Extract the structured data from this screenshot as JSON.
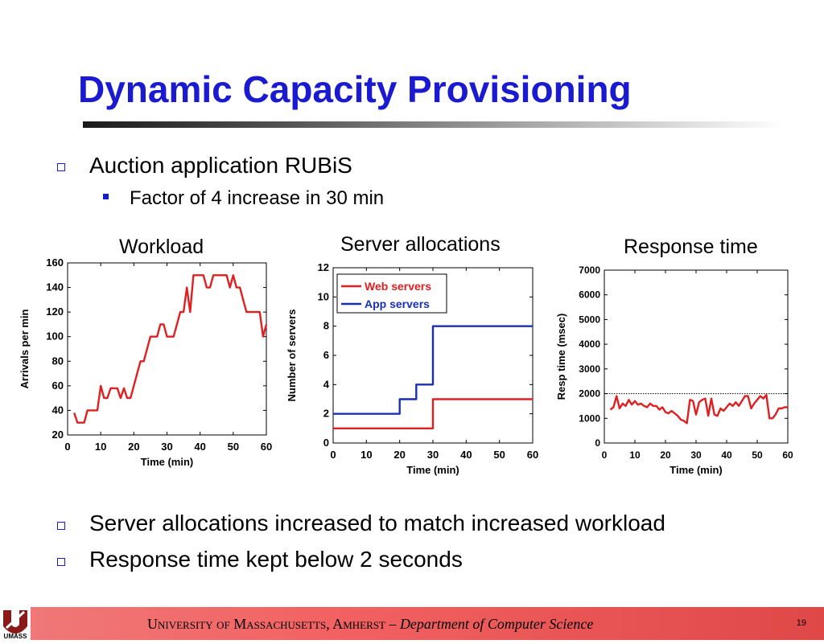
{
  "slide": {
    "title": "Dynamic Capacity Provisioning",
    "bullets_top": [
      {
        "text": "Auction application RUBiS",
        "sub": [
          {
            "text": "Factor of 4 increase in 30 min"
          }
        ]
      }
    ],
    "bullets_bottom": [
      {
        "text": "Server allocations increased to match increased workload"
      },
      {
        "text": "Response time kept below 2 seconds"
      }
    ],
    "footer": {
      "university_sc": "University of Massachusetts, Amherst",
      "separator": "–",
      "department": "Department of Computer Science",
      "page_number": "19",
      "logo_text": "UMASS"
    },
    "colors": {
      "title": "#1a1ad0",
      "bullet": "#1a1ad0",
      "red_series": "#e02020",
      "blue_series": "#1a2fb8",
      "footer": "#f26262"
    }
  },
  "chart_data": [
    {
      "type": "line",
      "title": "Workload",
      "xlabel": "Time (min)",
      "ylabel": "Arrivals per min",
      "xlim": [
        0,
        60
      ],
      "ylim": [
        20,
        160
      ],
      "xticks": [
        0,
        10,
        20,
        30,
        40,
        50,
        60
      ],
      "yticks": [
        20,
        40,
        60,
        80,
        100,
        120,
        140,
        160
      ],
      "grid": false,
      "series": [
        {
          "color": "#e02020",
          "x": [
            2,
            3,
            4,
            5,
            6,
            7,
            8,
            9,
            10,
            11,
            12,
            13,
            14,
            15,
            16,
            17,
            18,
            19,
            20,
            21,
            22,
            23,
            24,
            25,
            26,
            27,
            28,
            29,
            30,
            31,
            32,
            33,
            34,
            35,
            36,
            37,
            38,
            39,
            40,
            41,
            42,
            43,
            44,
            45,
            46,
            47,
            48,
            49,
            50,
            51,
            52,
            53,
            54,
            55,
            56,
            57,
            58,
            59,
            60
          ],
          "y": [
            38,
            30,
            30,
            30,
            40,
            40,
            40,
            40,
            60,
            50,
            50,
            58,
            58,
            58,
            50,
            58,
            50,
            50,
            60,
            70,
            80,
            80,
            90,
            100,
            100,
            100,
            110,
            110,
            100,
            100,
            100,
            110,
            120,
            120,
            140,
            120,
            150,
            150,
            150,
            150,
            140,
            140,
            150,
            150,
            150,
            150,
            150,
            140,
            150,
            140,
            140,
            130,
            120,
            120,
            120,
            120,
            120,
            100,
            110
          ]
        }
      ]
    },
    {
      "type": "line",
      "title": "Server allocations",
      "xlabel": "Time (min)",
      "ylabel": "Number of servers",
      "xlim": [
        0,
        60
      ],
      "ylim": [
        0,
        12
      ],
      "xticks": [
        0,
        10,
        20,
        30,
        40,
        50,
        60
      ],
      "yticks": [
        0,
        2,
        4,
        6,
        8,
        10,
        12
      ],
      "grid": false,
      "legend": "top-left",
      "series": [
        {
          "name": "Web servers",
          "color": "#e02020",
          "x": [
            0,
            30,
            30,
            60
          ],
          "y": [
            1,
            1,
            3,
            3
          ]
        },
        {
          "name": "App servers",
          "color": "#1a2fb8",
          "x": [
            0,
            20,
            20,
            25,
            25,
            30,
            30,
            60
          ],
          "y": [
            2,
            2,
            3,
            3,
            4,
            4,
            8,
            8
          ]
        }
      ]
    },
    {
      "type": "line",
      "title": "Response time",
      "xlabel": "Time (min)",
      "ylabel": "Resp time (msec)",
      "xlim": [
        0,
        60
      ],
      "ylim": [
        0,
        7000
      ],
      "xticks": [
        0,
        10,
        20,
        30,
        40,
        50,
        60
      ],
      "yticks": [
        0,
        1000,
        2000,
        3000,
        4000,
        5000,
        6000,
        7000
      ],
      "grid": false,
      "threshold": 2000,
      "series": [
        {
          "color": "#e02020",
          "x": [
            2,
            3,
            4,
            5,
            6,
            7,
            8,
            9,
            10,
            11,
            12,
            13,
            14,
            15,
            16,
            17,
            18,
            19,
            20,
            21,
            22,
            23,
            24,
            25,
            26,
            27,
            28,
            29,
            30,
            31,
            32,
            33,
            34,
            35,
            36,
            37,
            38,
            39,
            40,
            41,
            42,
            43,
            44,
            45,
            46,
            47,
            48,
            49,
            50,
            51,
            52,
            53,
            54,
            55,
            56,
            57,
            58,
            59,
            60
          ],
          "y": [
            1350,
            1450,
            1900,
            1400,
            1600,
            1500,
            1750,
            1550,
            1700,
            1550,
            1600,
            1500,
            1450,
            1600,
            1500,
            1500,
            1350,
            1450,
            1250,
            1200,
            1300,
            1200,
            1100,
            950,
            900,
            800,
            1750,
            1700,
            1150,
            1650,
            1750,
            1800,
            1100,
            1800,
            1150,
            1100,
            1400,
            1300,
            1450,
            1600,
            1500,
            1650,
            1500,
            1700,
            1900,
            1900,
            1400,
            1600,
            1750,
            1900,
            1800,
            1950,
            1000,
            1000,
            1150,
            1400,
            1400,
            1450,
            1450
          ]
        }
      ]
    }
  ]
}
